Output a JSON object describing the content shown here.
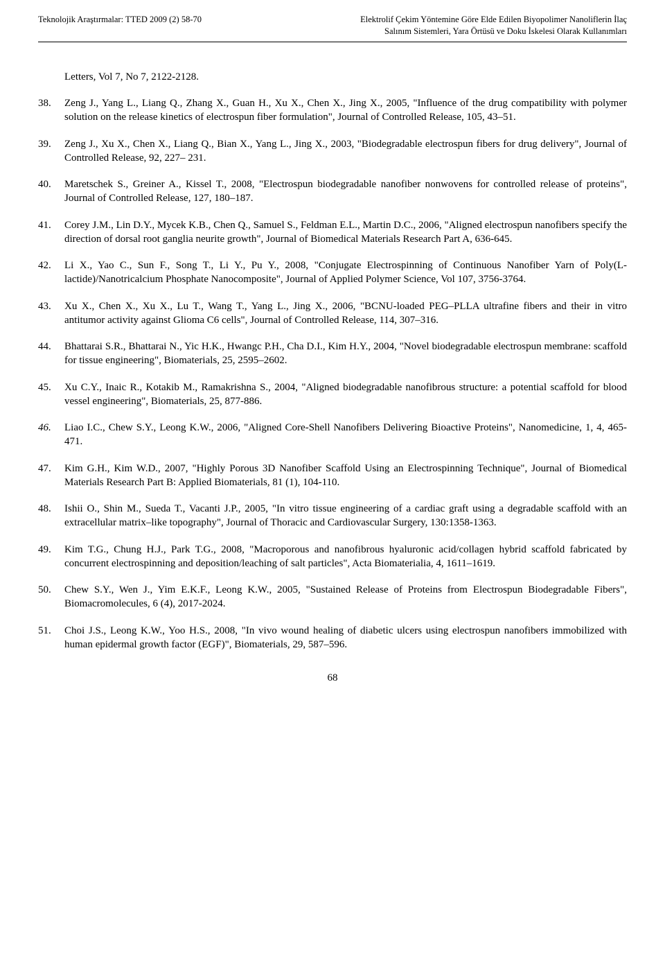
{
  "header": {
    "left": "Teknolojik Araştırmalar: TTED 2009 (2) 58-70",
    "right_line1": "Elektrolif Çekim Yöntemine Göre Elde Edilen Biyopolimer Nanoliflerin İlaç",
    "right_line2": "Salınım Sistemleri, Yara Örtüsü ve Doku İskelesi Olarak Kullanımları"
  },
  "intro_fragment": "Letters, Vol 7, No 7, 2122-2128.",
  "references": [
    {
      "num": "38.",
      "italic_num": false,
      "text": "Zeng J., Yang L., Liang Q., Zhang X., Guan H., Xu X., Chen X., Jing X., 2005, \"Influence of the drug compatibility with polymer solution on the release kinetics of electrospun fiber formulation\", Journal of Controlled Release, 105, 43–51."
    },
    {
      "num": "39.",
      "italic_num": false,
      "text": "Zeng J., Xu X., Chen X., Liang Q., Bian X., Yang L., Jing X., 2003, \"Biodegradable electrospun fibers for drug delivery\", Journal of Controlled Release, 92, 227– 231."
    },
    {
      "num": "40.",
      "italic_num": false,
      "text": "Maretschek S., Greiner A., Kissel T., 2008, \"Electrospun biodegradable nanofiber nonwovens for controlled release of proteins\", Journal of Controlled Release, 127, 180–187."
    },
    {
      "num": "41.",
      "italic_num": false,
      "text": "Corey J.M., Lin D.Y., Mycek K.B., Chen Q., Samuel S., Feldman E.L., Martin D.C., 2006, \"Aligned electrospun nanofibers specify the direction of dorsal root ganglia neurite growth\", Journal of Biomedical Materials Research Part A, 636-645."
    },
    {
      "num": "42.",
      "italic_num": false,
      "text": "Li X., Yao C., Sun F., Song T., Li Y., Pu Y., 2008, \"Conjugate Electrospinning of Continuous Nanofiber Yarn of Poly(L-lactide)/Nanotricalcium Phosphate Nanocomposite\", Journal of Applied Polymer Science, Vol 107, 3756-3764."
    },
    {
      "num": "43.",
      "italic_num": false,
      "text": "Xu X., Chen X., Xu X., Lu T., Wang T., Yang L., Jing X., 2006, \"BCNU-loaded PEG–PLLA ultrafine fibers and their in vitro antitumor activity against Glioma C6 cells\", Journal of Controlled Release, 114, 307–316."
    },
    {
      "num": "44.",
      "italic_num": false,
      "text": "Bhattarai S.R., Bhattarai N., Yic H.K., Hwangc P.H., Cha D.I., Kim H.Y., 2004, \"Novel biodegradable electrospun membrane: scaffold for tissue engineering\", Biomaterials, 25, 2595–2602."
    },
    {
      "num": "45.",
      "italic_num": false,
      "text": "Xu C.Y., Inaic R., Kotakib M., Ramakrishna S., 2004, \"Aligned biodegradable nanofibrous structure: a potential scaffold for blood vessel engineering\", Biomaterials, 25, 877-886."
    },
    {
      "num": "46.",
      "italic_num": true,
      "text": "Liao I.C., Chew S.Y., Leong K.W., 2006, \"Aligned Core-Shell Nanofibers Delivering Bioactive Proteins\", Nanomedicine, 1, 4, 465-471."
    },
    {
      "num": "47.",
      "italic_num": false,
      "text": "Kim G.H., Kim W.D., 2007, \"Highly Porous 3D Nanofiber Scaffold Using an Electrospinning Technique\", Journal of Biomedical Materials Research Part B: Applied Biomaterials, 81 (1), 104-110."
    },
    {
      "num": "48.",
      "italic_num": false,
      "text": "Ishii O., Shin M., Sueda T., Vacanti J.P., 2005, \"In vitro tissue engineering of a cardiac graft using a degradable scaffold with an extracellular matrix–like topography\", Journal of Thoracic and Cardiovascular Surgery, 130:1358-1363."
    },
    {
      "num": "49.",
      "italic_num": false,
      "text": "Kim T.G., Chung H.J., Park T.G., 2008, \"Macroporous and nanofibrous hyaluronic acid/collagen hybrid scaffold fabricated by concurrent electrospinning and deposition/leaching of salt particles\", Acta Biomaterialia, 4, 1611–1619."
    },
    {
      "num": "50.",
      "italic_num": false,
      "text": "Chew S.Y., Wen J., Yim E.K.F., Leong K.W., 2005, \"Sustained Release of Proteins from Electrospun Biodegradable Fibers\", Biomacromolecules, 6 (4), 2017-2024."
    },
    {
      "num": "51.",
      "italic_num": false,
      "text": "Choi J.S., Leong K.W., Yoo H.S., 2008, \"In vivo wound healing of diabetic ulcers using electrospun nanofibers immobilized with human epidermal growth factor (EGF)\", Biomaterials, 29, 587–596."
    }
  ],
  "page_number": "68"
}
